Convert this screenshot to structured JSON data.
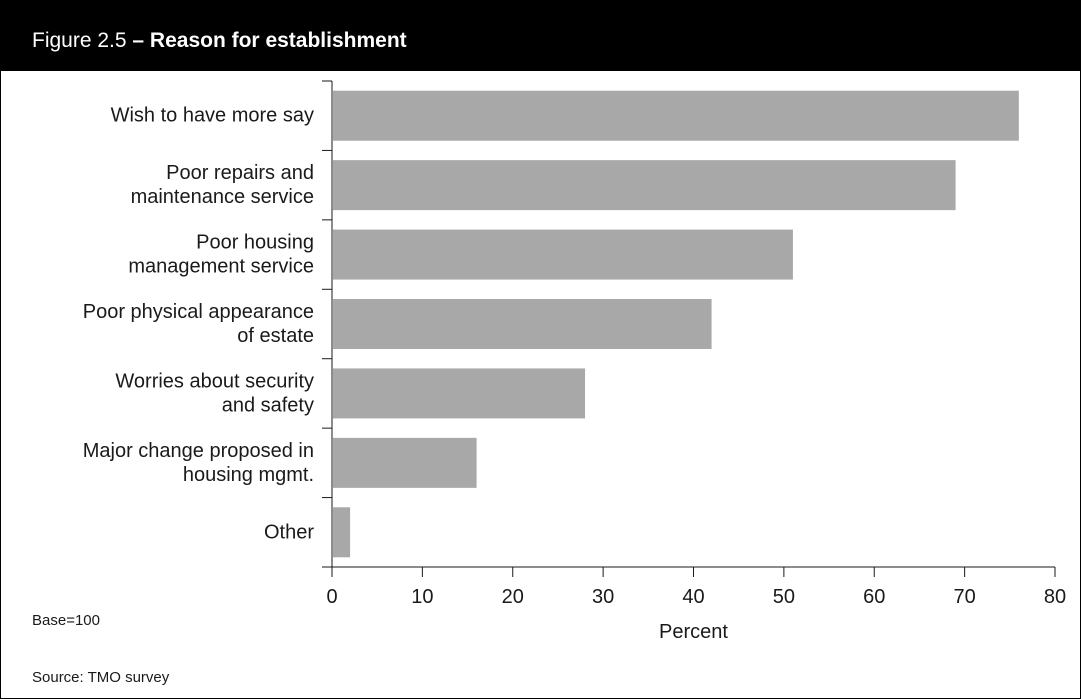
{
  "figure": {
    "label": "Figure 2.5",
    "title": "– Reason for establishment",
    "bar_color": "#a8a8a8",
    "header_color": "#000000"
  },
  "notes": {
    "base": "Base=100",
    "source": "Source: TMO survey"
  },
  "chart_data": {
    "type": "bar",
    "orientation": "horizontal",
    "categories": [
      [
        "Wish to have more say"
      ],
      [
        "Poor repairs and",
        "maintenance service"
      ],
      [
        "Poor housing",
        "management service"
      ],
      [
        "Poor physical appearance",
        "of estate"
      ],
      [
        "Worries about security",
        "and safety"
      ],
      [
        "Major change proposed in",
        "housing mgmt."
      ],
      [
        "Other"
      ]
    ],
    "values": [
      76,
      69,
      51,
      42,
      28,
      16,
      2
    ],
    "xlabel": "Percent",
    "ylabel": "",
    "xlim": [
      0,
      80
    ],
    "xticks": [
      0,
      10,
      20,
      30,
      40,
      50,
      60,
      70,
      80
    ],
    "grid": false,
    "legend": "none"
  }
}
